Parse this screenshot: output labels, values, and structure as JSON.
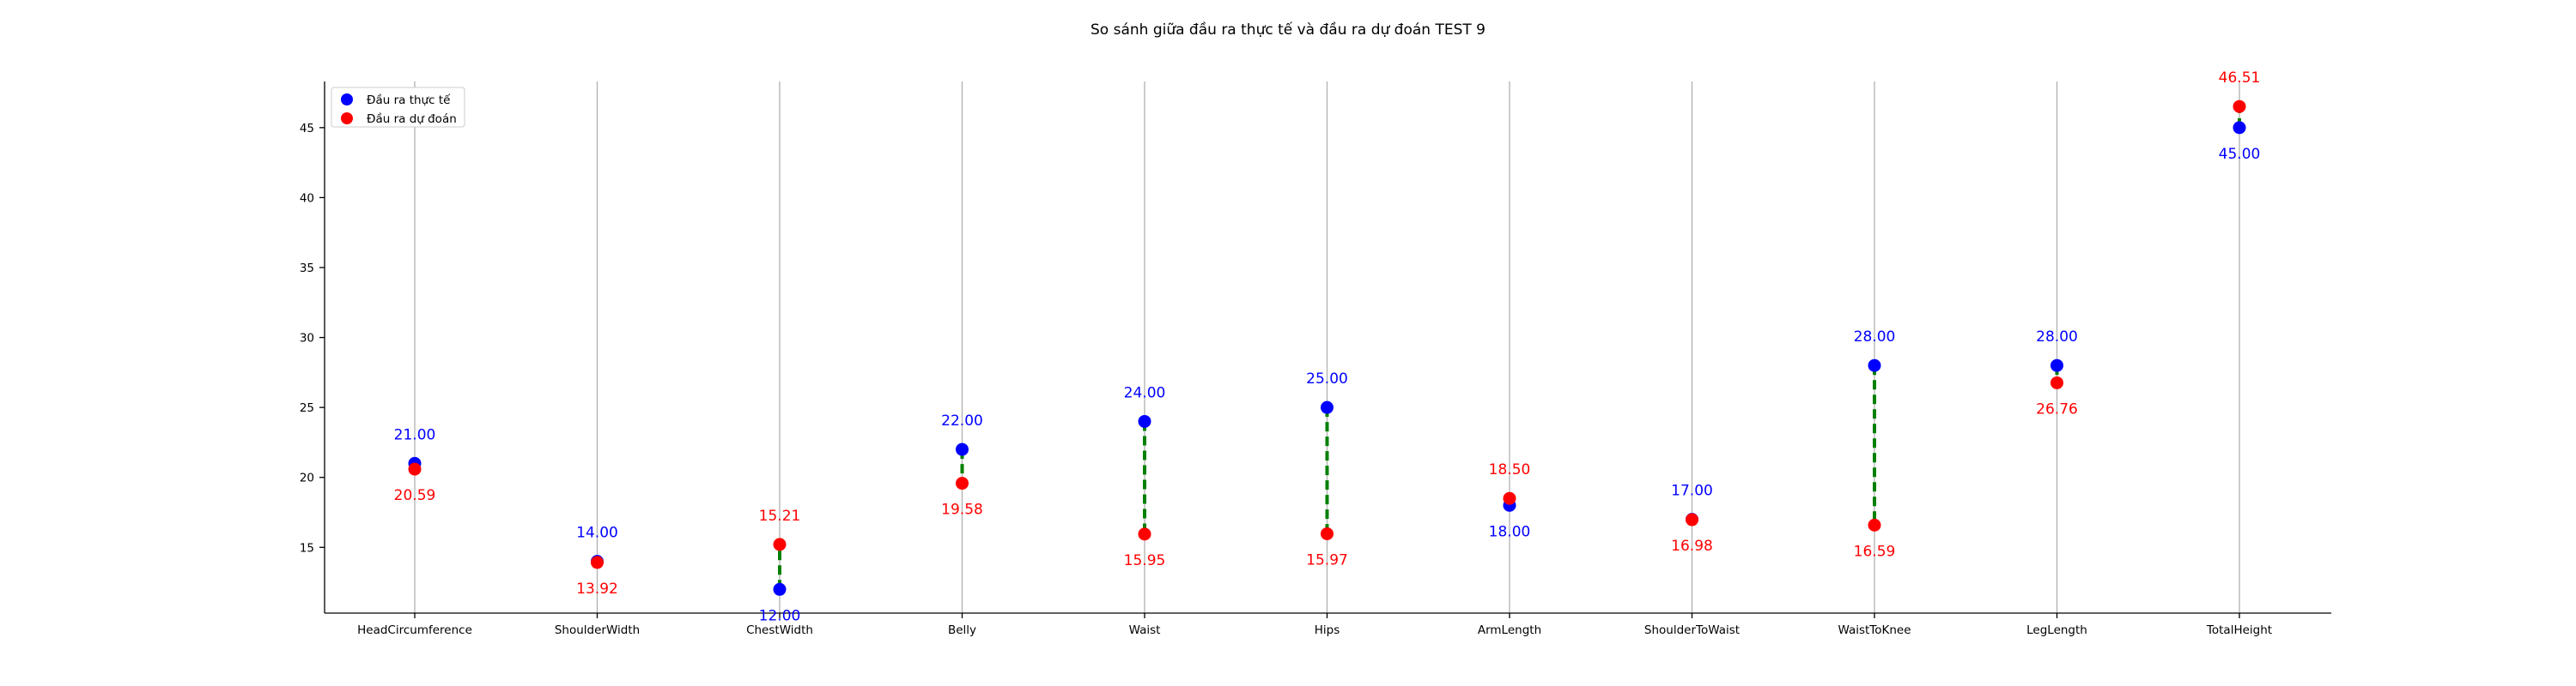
{
  "chart_data": {
    "type": "scatter",
    "title": "So sánh giữa đầu ra thực tế và đầu ra dự đoán TEST 9",
    "xlabel": "",
    "ylabel": "",
    "categories": [
      "HeadCircumference",
      "ShoulderWidth",
      "ChestWidth",
      "Belly",
      "Waist",
      "Hips",
      "ArmLength",
      "ShoulderToWaist",
      "WaistToKnee",
      "LegLength",
      "TotalHeight"
    ],
    "series": [
      {
        "name": "Đầu ra thực tế",
        "color": "#0000ff",
        "values": [
          21.0,
          14.0,
          12.0,
          22.0,
          24.0,
          25.0,
          18.0,
          17.0,
          28.0,
          28.0,
          45.0
        ]
      },
      {
        "name": "Đầu ra dự đoán",
        "color": "#ff0000",
        "values": [
          20.59,
          13.92,
          15.21,
          19.58,
          15.95,
          15.97,
          18.5,
          16.98,
          16.59,
          26.76,
          46.51
        ]
      }
    ],
    "ylim": [
      10.3,
      48.3
    ],
    "yticks": [
      15,
      20,
      25,
      30,
      35,
      40,
      45
    ],
    "ytick_labels": [
      "15",
      "20",
      "25",
      "30",
      "35",
      "40",
      "45"
    ],
    "connector_color": "#008000",
    "grid": "vertical",
    "legend": "top-left"
  }
}
